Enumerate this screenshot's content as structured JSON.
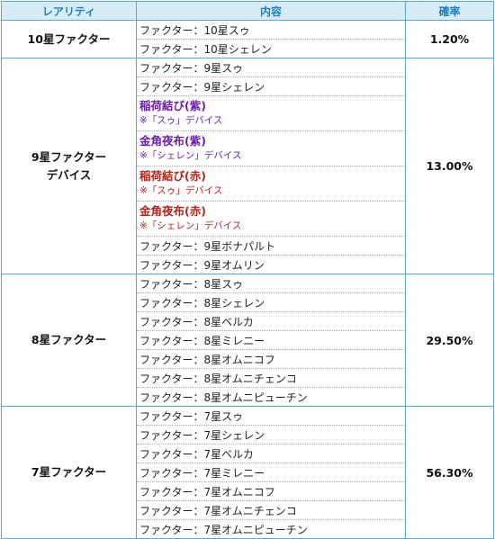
{
  "header": {
    "rarity": "レアリティ",
    "content": "内容",
    "rate": "確率"
  },
  "groups": [
    {
      "rarity_lines": [
        "10星ファクター"
      ],
      "rate": "1.20%",
      "items": [
        {
          "text": "ファクター：10星スゥ"
        },
        {
          "text": "ファクター：10星シェレン"
        }
      ]
    },
    {
      "rarity_lines": [
        "9星ファクター",
        "デバイス"
      ],
      "rate": "13.00%",
      "items": [
        {
          "text": "ファクター：9星スゥ"
        },
        {
          "text": "ファクター：9星シェレン"
        },
        {
          "name": "稲荷結び(紫)",
          "note": "※「スゥ」デバイス",
          "color": "#6a1fa8"
        },
        {
          "name": "金角夜布(紫)",
          "note": "※「シェレン」デバイス",
          "color": "#6a1fa8"
        },
        {
          "name": "稲荷結び(赤)",
          "note": "※「スゥ」デバイス",
          "color": "#b3241b"
        },
        {
          "name": "金角夜布(赤)",
          "note": "※「シェレン」デバイス",
          "color": "#b3241b"
        },
        {
          "text": "ファクター：9星ボナパルト"
        },
        {
          "text": "ファクター：9星オムリン"
        }
      ]
    },
    {
      "rarity_lines": [
        "8星ファクター"
      ],
      "rate": "29.50%",
      "items": [
        {
          "text": "ファクター：8星スゥ"
        },
        {
          "text": "ファクター：8星シェレン"
        },
        {
          "text": "ファクター：8星ベルカ"
        },
        {
          "text": "ファクター：8星ミレニー"
        },
        {
          "text": "ファクター：8星オムニコフ"
        },
        {
          "text": "ファクター：8星オムニチェンコ"
        },
        {
          "text": "ファクター：8星オムニピューチン"
        }
      ]
    },
    {
      "rarity_lines": [
        "7星ファクター"
      ],
      "rate": "56.30%",
      "items": [
        {
          "text": "ファクター：7星スゥ"
        },
        {
          "text": "ファクター：7星シェレン"
        },
        {
          "text": "ファクター：7星ベルカ"
        },
        {
          "text": "ファクター：7星ミレニー"
        },
        {
          "text": "ファクター：7星オムニコフ"
        },
        {
          "text": "ファクター：7星オムニチェンコ"
        },
        {
          "text": "ファクター：7星オムニピューチン"
        }
      ]
    }
  ]
}
